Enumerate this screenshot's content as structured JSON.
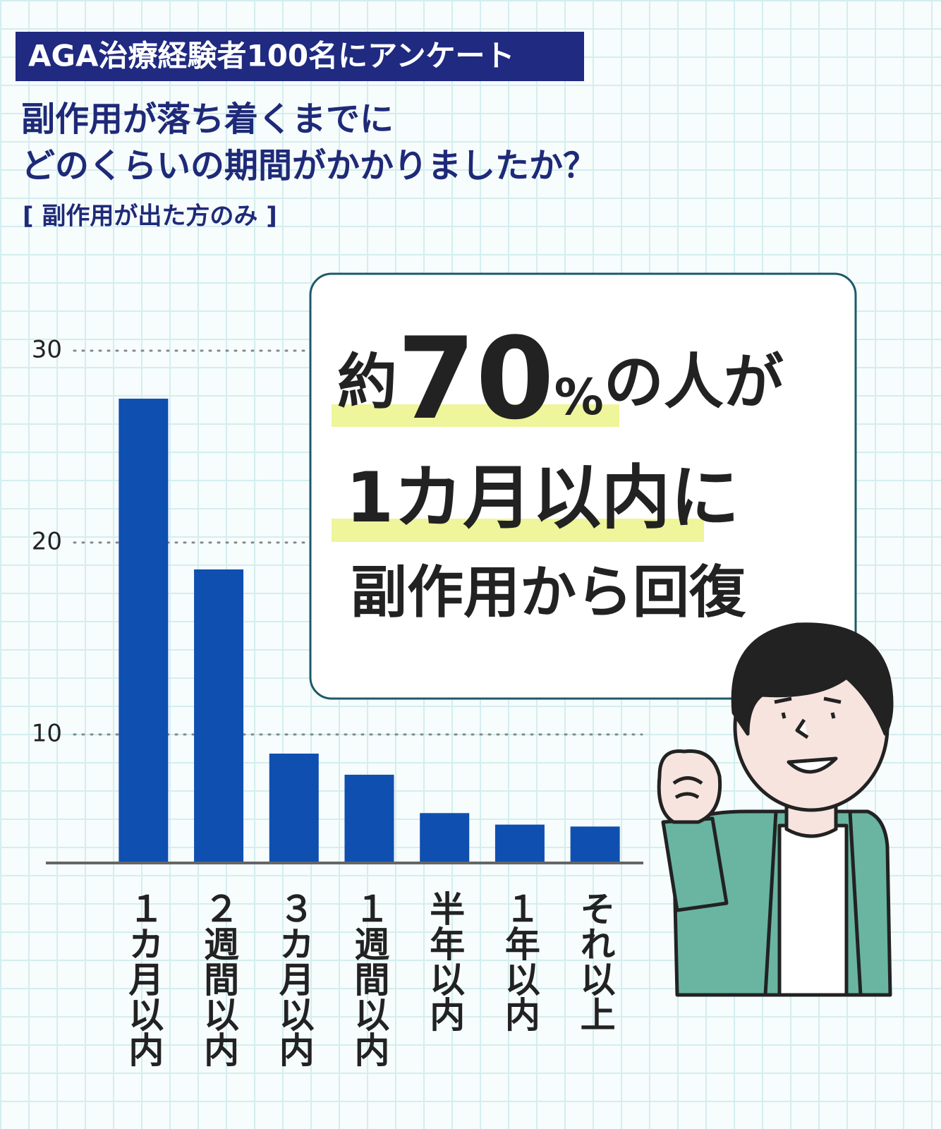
{
  "chart_data": {
    "type": "bar",
    "header": "AGA治療経験者100名にアンケート",
    "title": [
      "副作用が落ち着くまでに",
      "どのくらいの期間がかかりましたか？"
    ],
    "subtitle": "[ 副作用が出た方のみ ]",
    "callout": {
      "prefix": "約",
      "number": "70",
      "unit": "%",
      "suffix": "の人が",
      "line2": "1カ月以内に",
      "line3": "副作用から回復"
    },
    "categories": [
      "１カ月以内",
      "２週間以内",
      "３カ月以内",
      "１週間以内",
      "半年以内",
      "１年以内",
      "それ以上"
    ],
    "values": [
      27.5,
      18.6,
      9.0,
      7.9,
      5.9,
      5.3,
      5.2
    ],
    "color": "#0f4fb0",
    "ylim": [
      3.3,
      30
    ],
    "yticks": [
      10,
      20,
      30
    ],
    "grid": true
  }
}
